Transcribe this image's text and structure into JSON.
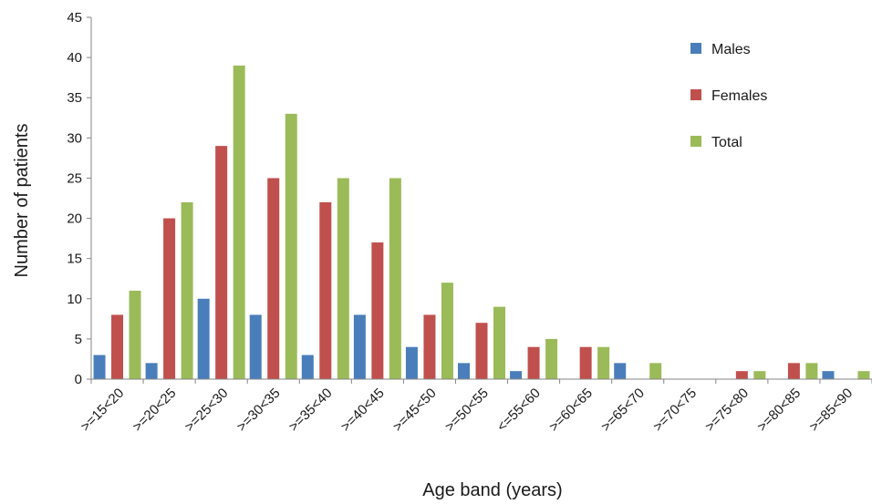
{
  "chart_data": {
    "type": "bar",
    "xlabel": "Age band (years)",
    "ylabel": "Number of patients",
    "ylim": [
      0,
      45
    ],
    "yticks": [
      0,
      5,
      10,
      15,
      20,
      25,
      30,
      35,
      40,
      45
    ],
    "grid": false,
    "legend_position": "top-right",
    "categories": [
      ">=15<20",
      ">=20<25",
      ">=25<30",
      ">=30<35",
      ">=35<40",
      ">=40<45",
      ">=45<50",
      ">=50<55",
      "<=55<60",
      ">=60<65",
      ">=65<70",
      ">=70<75",
      ">=75<80",
      ">=80<85",
      ">=85<90"
    ],
    "series": [
      {
        "name": "Males",
        "color": "#4a7ebb",
        "values": [
          3,
          2,
          10,
          8,
          3,
          8,
          4,
          2,
          1,
          0,
          2,
          0,
          0,
          0,
          1
        ]
      },
      {
        "name": "Females",
        "color": "#c0504d",
        "values": [
          8,
          20,
          29,
          25,
          22,
          17,
          8,
          7,
          4,
          4,
          0,
          0,
          1,
          2,
          0
        ]
      },
      {
        "name": "Total",
        "color": "#9bbb59",
        "values": [
          11,
          22,
          39,
          33,
          25,
          25,
          12,
          9,
          5,
          4,
          2,
          0,
          1,
          2,
          1
        ]
      }
    ]
  }
}
